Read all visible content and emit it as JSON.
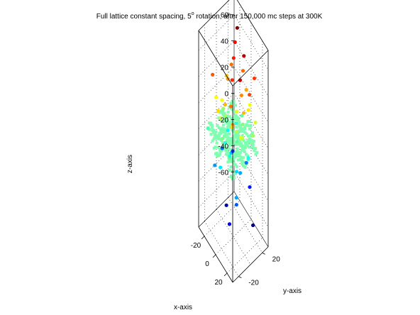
{
  "chart_data": {
    "type": "scatter",
    "projection": "3d",
    "title": {
      "before_superscript": "Full lattice constant spacing, 5",
      "superscript": "o",
      "after_superscript": " rotation, after 150,000 mc steps at 300K"
    },
    "xlabel": "x-axis",
    "ylabel": "y-axis",
    "zlabel": "z-axis",
    "xlim": [
      -30,
      30
    ],
    "ylim": [
      -30,
      30
    ],
    "zlim": [
      -75,
      75
    ],
    "x_ticks": [
      "-20",
      "0",
      "20"
    ],
    "y_ticks": [
      "-20",
      "20"
    ],
    "z_ticks": [
      "-60",
      "-40",
      "-20",
      "0",
      "20",
      "40",
      "60"
    ],
    "grid": true,
    "box": true,
    "colormap": "jet",
    "color_by": "z",
    "lattice_plane": {
      "description_color": "#7fffb0",
      "x_range": [
        -22,
        22
      ],
      "y_range": [
        -22,
        22
      ],
      "z_approx": 0,
      "spacing": 2.5,
      "rotation_deg": 5
    },
    "series": [
      {
        "points": [
          [
            -12,
            18,
            68
          ],
          [
            6,
            12,
            62
          ],
          [
            18,
            -6,
            60
          ],
          [
            -18,
            20,
            52
          ],
          [
            -10,
            10,
            50
          ],
          [
            2,
            -4,
            48
          ],
          [
            14,
            22,
            46
          ],
          [
            20,
            8,
            44
          ],
          [
            -20,
            -16,
            42
          ],
          [
            -4,
            20,
            40
          ],
          [
            10,
            -14,
            38
          ],
          [
            22,
            -22,
            36
          ],
          [
            -14,
            4,
            34
          ],
          [
            4,
            18,
            32
          ],
          [
            16,
            2,
            30
          ],
          [
            -22,
            10,
            28
          ],
          [
            -6,
            -20,
            26
          ],
          [
            12,
            14,
            24
          ],
          [
            24,
            -10,
            22
          ],
          [
            -16,
            -4,
            20
          ],
          [
            0,
            6,
            18
          ],
          [
            18,
            20,
            16
          ],
          [
            -10,
            -12,
            14
          ],
          [
            8,
            -2,
            12
          ],
          [
            20,
            14,
            10
          ],
          [
            -20,
            2,
            8
          ],
          [
            -2,
            -16,
            6
          ],
          [
            14,
            -20,
            4
          ],
          [
            -8,
            22,
            2
          ],
          [
            6,
            0,
            2
          ],
          [
            -24,
            -20,
            0
          ],
          [
            22,
            4,
            -2
          ],
          [
            -12,
            16,
            -4
          ],
          [
            4,
            -10,
            -6
          ],
          [
            16,
            10,
            -8
          ],
          [
            -18,
            8,
            -10
          ],
          [
            0,
            -22,
            -12
          ],
          [
            12,
            -6,
            -14
          ],
          [
            -6,
            2,
            -16
          ],
          [
            24,
            -18,
            -20
          ],
          [
            -14,
            -18,
            -22
          ],
          [
            2,
            20,
            -26
          ],
          [
            20,
            -14,
            -30
          ],
          [
            -22,
            20,
            -34
          ],
          [
            10,
            18,
            -38
          ],
          [
            16,
            -22,
            -44
          ],
          [
            -4,
            -8,
            -50
          ],
          [
            22,
            12,
            -56
          ],
          [
            -16,
            12,
            40
          ],
          [
            8,
            6,
            36
          ],
          [
            -2,
            -12,
            30
          ],
          [
            14,
            -16,
            26
          ],
          [
            -20,
            -10,
            22
          ],
          [
            6,
            22,
            20
          ],
          [
            18,
            -2,
            14
          ],
          [
            -12,
            -2,
            10
          ],
          [
            2,
            14,
            6
          ],
          [
            -8,
            -6,
            -6
          ],
          [
            10,
            2,
            -20
          ],
          [
            -24,
            4,
            -26
          ]
        ]
      }
    ]
  }
}
